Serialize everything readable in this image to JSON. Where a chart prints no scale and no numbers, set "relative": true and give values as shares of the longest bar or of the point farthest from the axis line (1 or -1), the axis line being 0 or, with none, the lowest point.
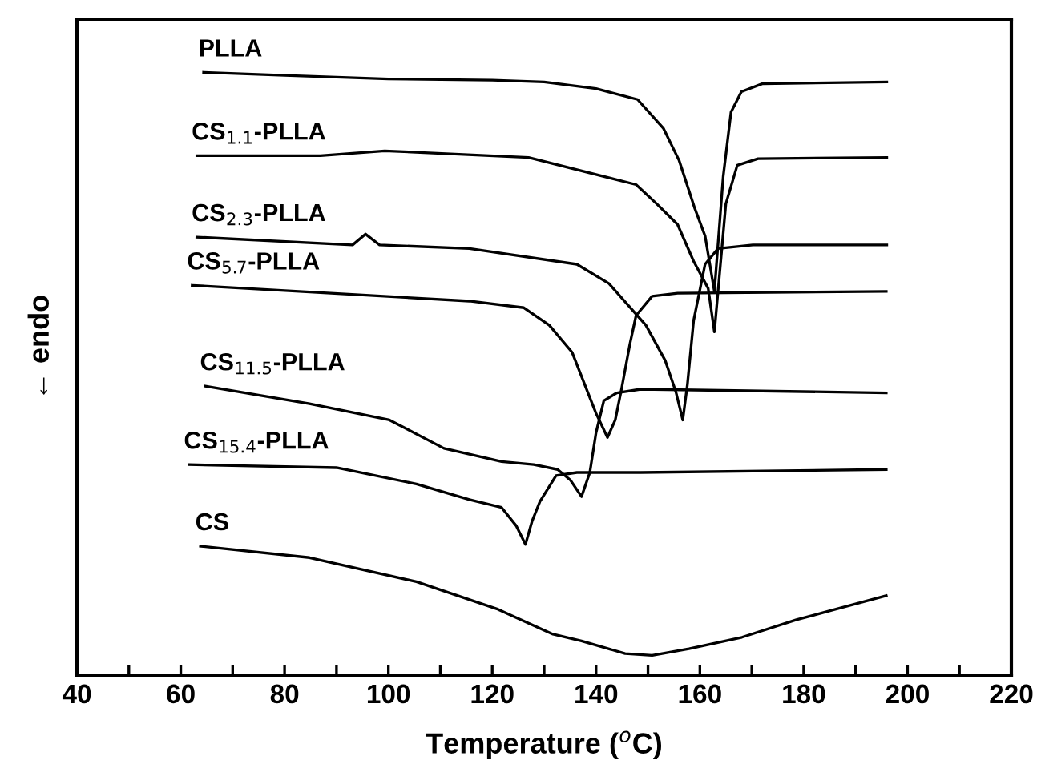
{
  "chart_data": {
    "type": "line",
    "relative": true,
    "xlabel": "Temperature ($^{o}$C)",
    "ylabel": "← endo",
    "xlim": [
      40,
      220
    ],
    "xticks": [
      40,
      {
        "value": 50,
        "label": null
      },
      60,
      {
        "value": 70,
        "label": null
      },
      80,
      {
        "value": 90,
        "label": null
      },
      100,
      {
        "value": 110,
        "label": null
      },
      120,
      {
        "value": 130,
        "label": null
      },
      140,
      {
        "value": 150,
        "label": null
      },
      160,
      {
        "value": 170,
        "label": null
      },
      180,
      {
        "value": 190,
        "label": null
      },
      200,
      {
        "value": 210,
        "label": null
      },
      220
    ],
    "grid": false,
    "legend": false,
    "marker": "none",
    "line_style": "solid",
    "series": [
      {
        "name": "PLLA",
        "color": "#000000",
        "x": [
          64.4,
          80,
          100,
          120,
          130,
          140,
          148,
          153,
          156,
          159,
          161,
          162.8,
          164.5,
          166,
          168,
          172,
          196
        ],
        "values": [
          1.0,
          0.995,
          0.989,
          0.987,
          0.984,
          0.973,
          0.955,
          0.907,
          0.854,
          0.775,
          0.729,
          0.637,
          0.828,
          0.934,
          0.968,
          0.981,
          0.984
        ]
      },
      {
        "name": "CS$_{1.1}$-PLLA",
        "color": "#000000",
        "x": [
          63.1,
          86.9,
          99.3,
          127,
          147.7,
          151.7,
          155.7,
          158.8,
          161.6,
          162.8,
          165,
          167.2,
          171.2,
          196
        ],
        "values": [
          0.862,
          0.862,
          0.87,
          0.859,
          0.814,
          0.782,
          0.748,
          0.687,
          0.642,
          0.57,
          0.782,
          0.846,
          0.857,
          0.859
        ]
      },
      {
        "name": "CS$_{2.3}$-PLLA",
        "color": "#000000",
        "x": [
          63.1,
          93.1,
          95.6,
          98.3,
          115.6,
          136.3,
          142.5,
          149.6,
          153.3,
          155.4,
          156.7,
          157.6,
          158.8,
          161,
          163.5,
          170.2,
          196
        ],
        "values": [
          0.727,
          0.714,
          0.732,
          0.714,
          0.708,
          0.682,
          0.65,
          0.581,
          0.523,
          0.47,
          0.424,
          0.483,
          0.589,
          0.682,
          0.708,
          0.714,
          0.714
        ]
      },
      {
        "name": "CS$_{5.7}$-PLLA",
        "color": "#000000",
        "x": [
          62.2,
          115.6,
          126.1,
          131,
          135.4,
          137.8,
          140,
          142.2,
          143.7,
          144.9,
          146.5,
          147.7,
          150.8,
          155.7,
          195.9
        ],
        "values": [
          0.647,
          0.621,
          0.61,
          0.581,
          0.536,
          0.483,
          0.435,
          0.395,
          0.424,
          0.475,
          0.549,
          0.597,
          0.629,
          0.634,
          0.637
        ]
      },
      {
        "name": "CS$_{11.5}$-PLLA",
        "color": "#000000",
        "x": [
          64.7,
          84.8,
          100.2,
          110.7,
          121.8,
          128,
          132.6,
          135.1,
          137.2,
          138.8,
          140,
          141.5,
          144,
          148.6,
          195.9
        ],
        "values": [
          0.48,
          0.451,
          0.424,
          0.377,
          0.355,
          0.35,
          0.342,
          0.324,
          0.297,
          0.337,
          0.403,
          0.456,
          0.469,
          0.475,
          0.469
        ]
      },
      {
        "name": "CS$_{15.4}$-PLLA",
        "color": "#000000",
        "x": [
          61.6,
          90,
          105.4,
          115.6,
          121.8,
          124.6,
          126.4,
          127.7,
          129.2,
          132.3,
          136.3,
          148.6,
          195.9
        ],
        "values": [
          0.35,
          0.345,
          0.318,
          0.292,
          0.279,
          0.249,
          0.218,
          0.257,
          0.289,
          0.332,
          0.337,
          0.337,
          0.342
        ]
      },
      {
        "name": "CS",
        "color": "#000000",
        "x": [
          63.8,
          84.8,
          105.4,
          120.9,
          131.7,
          137.2,
          145.6,
          150.8,
          157.9,
          168.1,
          178.6,
          195.9
        ],
        "values": [
          0.215,
          0.196,
          0.156,
          0.111,
          0.069,
          0.058,
          0.037,
          0.034,
          0.045,
          0.064,
          0.093,
          0.133
        ]
      }
    ]
  }
}
